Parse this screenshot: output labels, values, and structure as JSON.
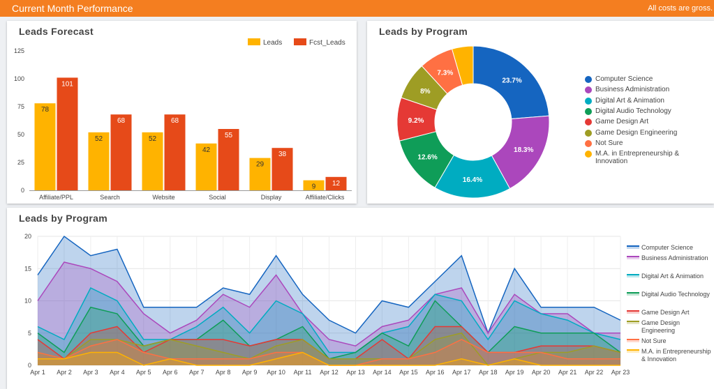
{
  "header": {
    "title": "Current Month Performance",
    "note": "All costs are gross."
  },
  "bar_panel": {
    "title": "Leads Forecast"
  },
  "donut_panel": {
    "title": "Leads by Program"
  },
  "area_panel": {
    "title": "Leads by Program"
  },
  "colors": {
    "header_bg": "#f47e20",
    "leads": "#ffb300",
    "fcst_leads": "#e64a19",
    "programs": [
      "#1565c0",
      "#ab47bc",
      "#00acc1",
      "#0f9d58",
      "#e53935",
      "#9e9d24",
      "#ff7043",
      "#ffb300"
    ]
  },
  "chart_data": [
    {
      "type": "bar",
      "title": "Leads Forecast",
      "categories": [
        "Affiliate/PPL",
        "Search",
        "Website",
        "Social",
        "Display",
        "Affiliate/Clicks"
      ],
      "series": [
        {
          "name": "Leads",
          "values": [
            78,
            52,
            52,
            42,
            29,
            9
          ]
        },
        {
          "name": "Fcst_Leads",
          "values": [
            101,
            68,
            68,
            55,
            38,
            12
          ]
        }
      ],
      "ylim": [
        0,
        125
      ],
      "yticks": [
        0,
        25,
        50,
        75,
        100,
        125
      ],
      "legend": "top-right",
      "data_labels": true
    },
    {
      "type": "pie",
      "title": "Leads by Program",
      "donut": true,
      "labels": [
        "Computer Science",
        "Business Administration",
        "Digital Art & Animation",
        "Digital Audio Technology",
        "Game Design Art",
        "Game Design Engineering",
        "Not Sure",
        "M.A. in Entrepreneurship & Innovation"
      ],
      "values": [
        23.7,
        18.3,
        16.4,
        12.6,
        9.2,
        8,
        7.3,
        4.5
      ],
      "slice_labels": [
        "23.7%",
        "18.3%",
        "16.4%",
        "12.6%",
        "9.2%",
        "8%",
        "7.3%",
        ""
      ],
      "legend": "right"
    },
    {
      "type": "area",
      "title": "Leads by Program",
      "stacked": false,
      "x": [
        "Apr 1",
        "Apr 2",
        "Apr 3",
        "Apr 4",
        "Apr 5",
        "Apr 6",
        "Apr 7",
        "Apr 8",
        "Apr 9",
        "Apr 10",
        "Apr 11",
        "Apr 12",
        "Apr 13",
        "Apr 14",
        "Apr 15",
        "Apr 16",
        "Apr 17",
        "Apr 18",
        "Apr 19",
        "Apr 20",
        "Apr 21",
        "Apr 22",
        "Apr 23"
      ],
      "ylim": [
        0,
        20
      ],
      "yticks": [
        0,
        5,
        10,
        15,
        20
      ],
      "grid": true,
      "legend": "right",
      "series": [
        {
          "name": "Computer Science",
          "values": [
            14,
            20,
            17,
            18,
            9,
            9,
            9,
            12,
            11,
            17,
            11,
            7,
            5,
            10,
            9,
            13,
            17,
            5,
            15,
            9,
            9,
            9,
            7
          ]
        },
        {
          "name": "Business Administration",
          "values": [
            10,
            16,
            15,
            13,
            8,
            5,
            7,
            11,
            9,
            14,
            8,
            4,
            3,
            6,
            7,
            11,
            12,
            5,
            11,
            8,
            8,
            5,
            5
          ]
        },
        {
          "name": "Digital Art & Animation",
          "values": [
            6,
            4,
            12,
            10,
            4,
            4,
            6,
            9,
            5,
            10,
            8,
            2,
            2,
            5,
            6,
            11,
            10,
            4,
            10,
            8,
            7,
            5,
            4
          ]
        },
        {
          "name": "Digital Audio Technology",
          "values": [
            5,
            2,
            9,
            8,
            3,
            4,
            4,
            7,
            3,
            4,
            6,
            1,
            2,
            5,
            3,
            10,
            6,
            2,
            6,
            5,
            5,
            5,
            2
          ]
        },
        {
          "name": "Game Design Art",
          "values": [
            4,
            1,
            5,
            6,
            2,
            4,
            4,
            4,
            3,
            4,
            4,
            1,
            1,
            4,
            1,
            6,
            6,
            2,
            2,
            3,
            3,
            3,
            2
          ]
        },
        {
          "name": "Game Design Engineering",
          "values": [
            2,
            1,
            4,
            4,
            3,
            4,
            3,
            2,
            1,
            3,
            4,
            1,
            1,
            1,
            1,
            4,
            5,
            0,
            1,
            2,
            2,
            3,
            2
          ]
        },
        {
          "name": "Not Sure",
          "values": [
            2,
            1,
            3,
            4,
            2,
            1,
            1,
            1,
            1,
            2,
            2,
            0,
            0,
            1,
            1,
            2,
            4,
            2,
            2,
            2,
            1,
            1,
            1
          ]
        },
        {
          "name": "M.A. in Entrepreneurship & Innovation",
          "values": [
            1,
            1,
            2,
            2,
            0,
            1,
            0,
            0,
            0,
            1,
            2,
            0,
            0,
            0,
            0,
            0,
            1,
            0,
            1,
            0,
            0,
            0,
            0
          ]
        }
      ]
    }
  ]
}
